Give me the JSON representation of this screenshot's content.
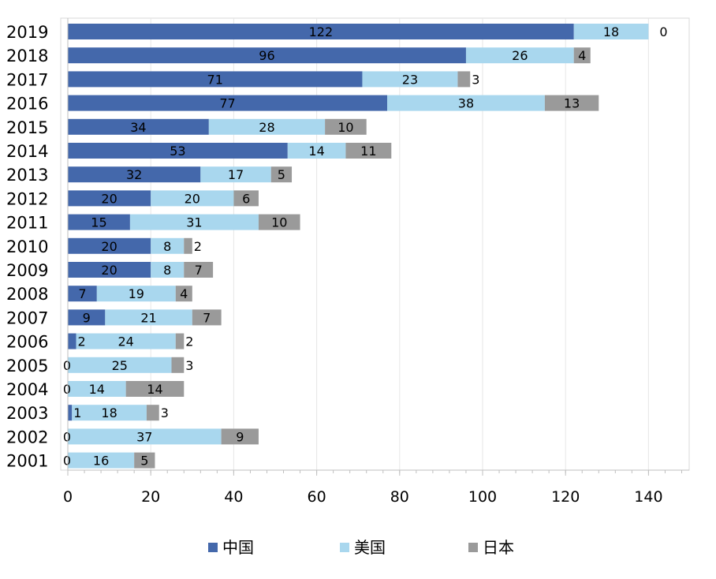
{
  "chart_data": {
    "type": "bar",
    "orientation": "horizontal",
    "stacked": true,
    "categories": [
      "2019",
      "2018",
      "2017",
      "2016",
      "2015",
      "2014",
      "2013",
      "2012",
      "2011",
      "2010",
      "2009",
      "2008",
      "2007",
      "2006",
      "2005",
      "2004",
      "2003",
      "2002",
      "2001"
    ],
    "series": [
      {
        "name": "中国",
        "color": "#4468ab",
        "values": [
          122,
          96,
          71,
          77,
          34,
          53,
          32,
          20,
          15,
          20,
          20,
          7,
          9,
          2,
          0,
          0,
          1,
          0,
          0
        ]
      },
      {
        "name": "美国",
        "color": "#a9d7ee",
        "values": [
          18,
          26,
          23,
          38,
          28,
          14,
          17,
          20,
          31,
          8,
          8,
          19,
          21,
          24,
          25,
          14,
          18,
          37,
          16
        ]
      },
      {
        "name": "日本",
        "color": "#9a9a9a",
        "values": [
          0,
          4,
          3,
          13,
          10,
          11,
          5,
          6,
          10,
          2,
          7,
          4,
          7,
          2,
          3,
          14,
          3,
          9,
          5
        ]
      }
    ],
    "xlim": [
      0,
      150
    ],
    "xticks": [
      "0",
      "20",
      "40",
      "60",
      "80",
      "100",
      "120",
      "140"
    ],
    "grid": true,
    "legend_position": "bottom"
  }
}
